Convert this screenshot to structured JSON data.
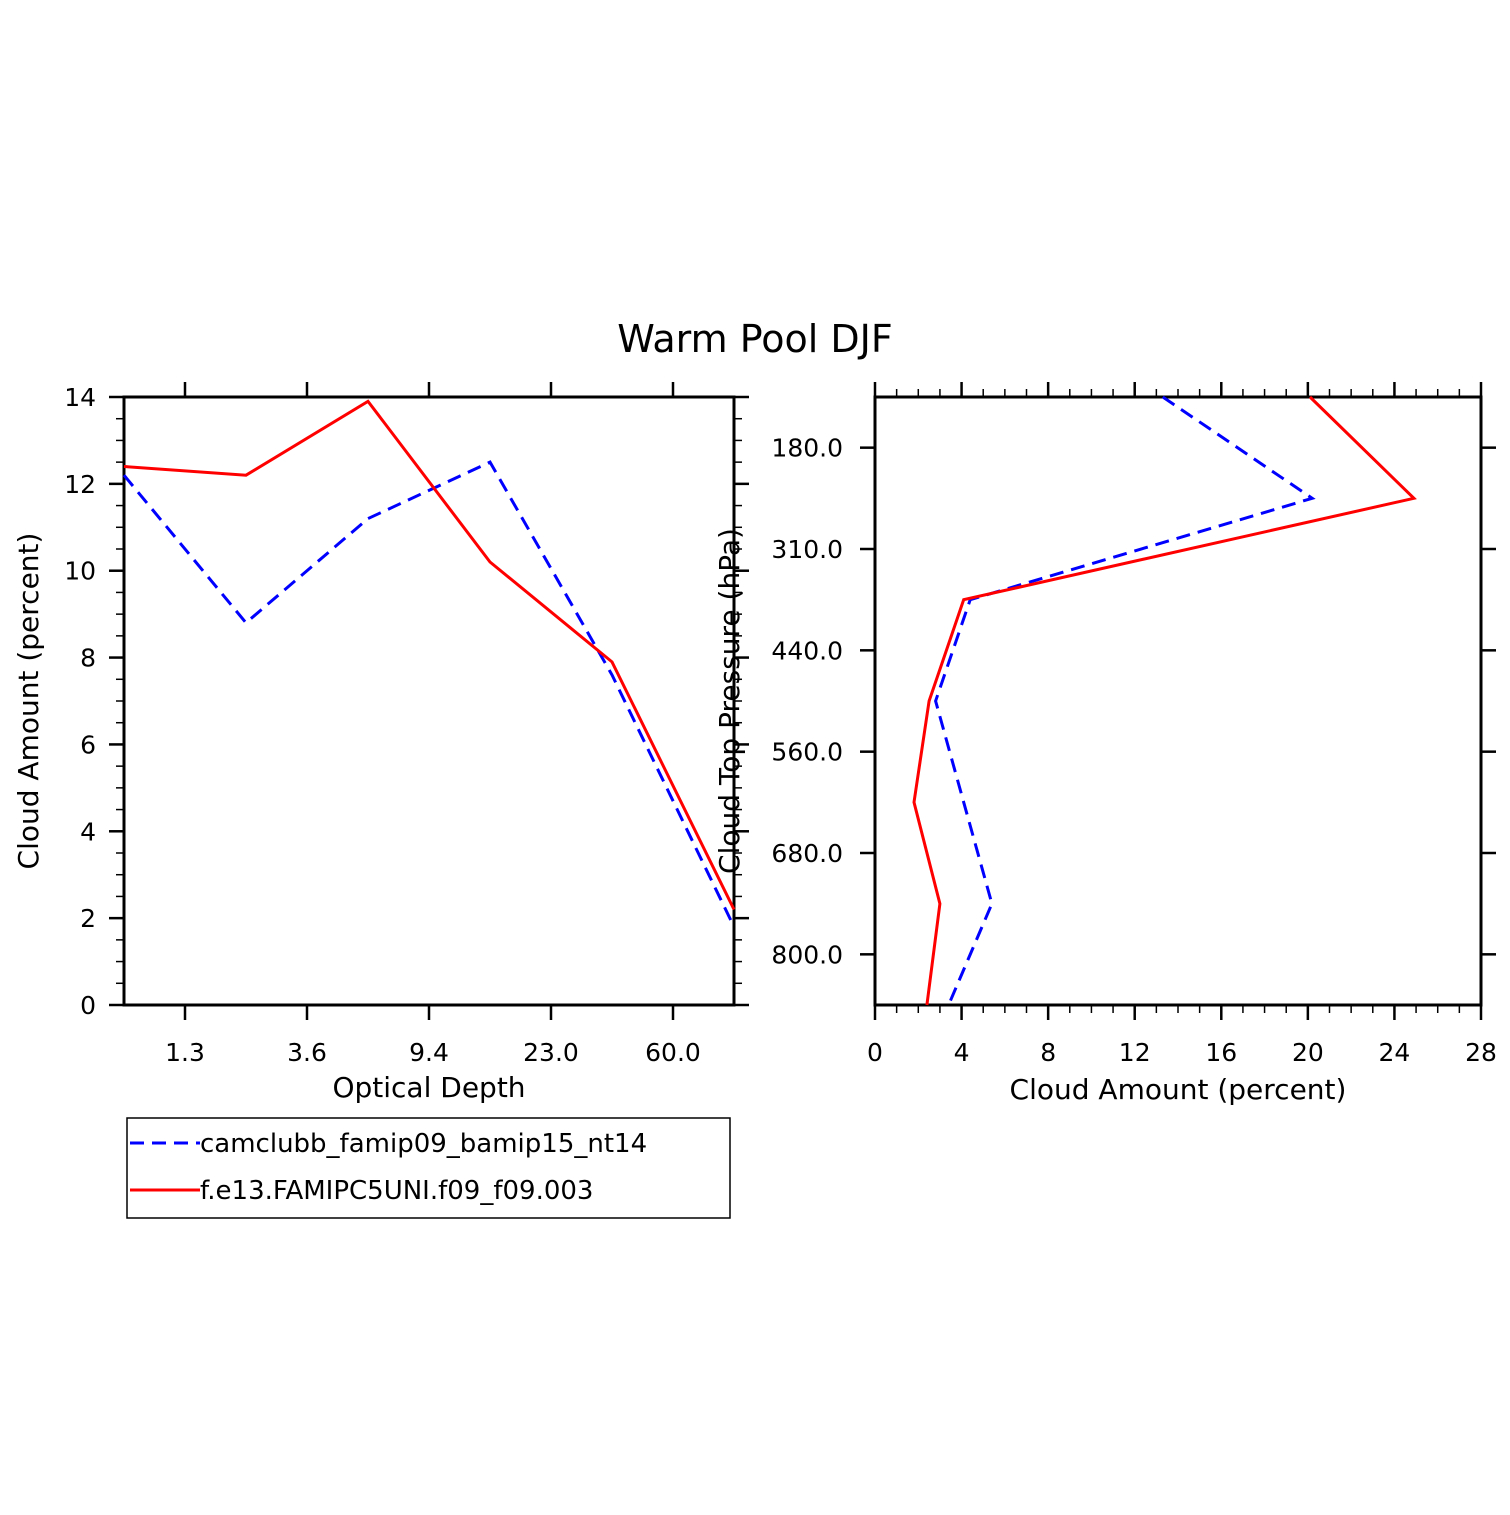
{
  "title": "Warm Pool DJF",
  "colors": {
    "series_a": "#0000ff",
    "series_b": "#ff0000"
  },
  "chart_data": [
    {
      "type": "line",
      "xlabel": "Optical Depth",
      "ylabel": "Cloud Amount (percent)",
      "ylim": [
        0,
        14
      ],
      "y_ticks": [
        "0",
        "2",
        "4",
        "6",
        "8",
        "10",
        "12",
        "14"
      ],
      "x_ticks": [
        "1.3",
        "3.6",
        "9.4",
        "23.0",
        "60.0"
      ],
      "x_categories": [
        0,
        1,
        2,
        3,
        4,
        5
      ],
      "series": [
        {
          "name": "camclubb_famip09_bamip15_nt14",
          "style": "dashed",
          "values": [
            12.2,
            8.8,
            11.2,
            12.5,
            7.6,
            1.8
          ]
        },
        {
          "name": "f.e13.FAMIPC5UNI.f09_f09.003",
          "style": "solid",
          "values": [
            12.4,
            12.2,
            13.9,
            10.2,
            7.9,
            2.2
          ]
        }
      ]
    },
    {
      "type": "line",
      "xlabel": "Cloud Amount (percent)",
      "ylabel": "Cloud Top Pressure (hPa)",
      "xlim": [
        0,
        28
      ],
      "x_ticks": [
        "0",
        "4",
        "8",
        "12",
        "16",
        "20",
        "24",
        "28"
      ],
      "y_ticks": [
        "180.0",
        "310.0",
        "440.0",
        "560.0",
        "680.0",
        "800.0"
      ],
      "y_levels": [
        0,
        1,
        2,
        3,
        4,
        5,
        6
      ],
      "series": [
        {
          "name": "camclubb_famip09_bamip15_nt14",
          "style": "dashed",
          "values": [
            13.3,
            20.2,
            4.4,
            2.8,
            4.1,
            5.4,
            3.4
          ]
        },
        {
          "name": "f.e13.FAMIPC5UNI.f09_f09.003",
          "style": "solid",
          "values": [
            20.1,
            24.9,
            4.1,
            2.5,
            1.8,
            3.0,
            2.4
          ]
        }
      ]
    }
  ],
  "legend": [
    {
      "label": "camclubb_famip09_bamip15_nt14",
      "style": "dashed"
    },
    {
      "label": "f.e13.FAMIPC5UNI.f09_f09.003",
      "style": "solid"
    }
  ]
}
